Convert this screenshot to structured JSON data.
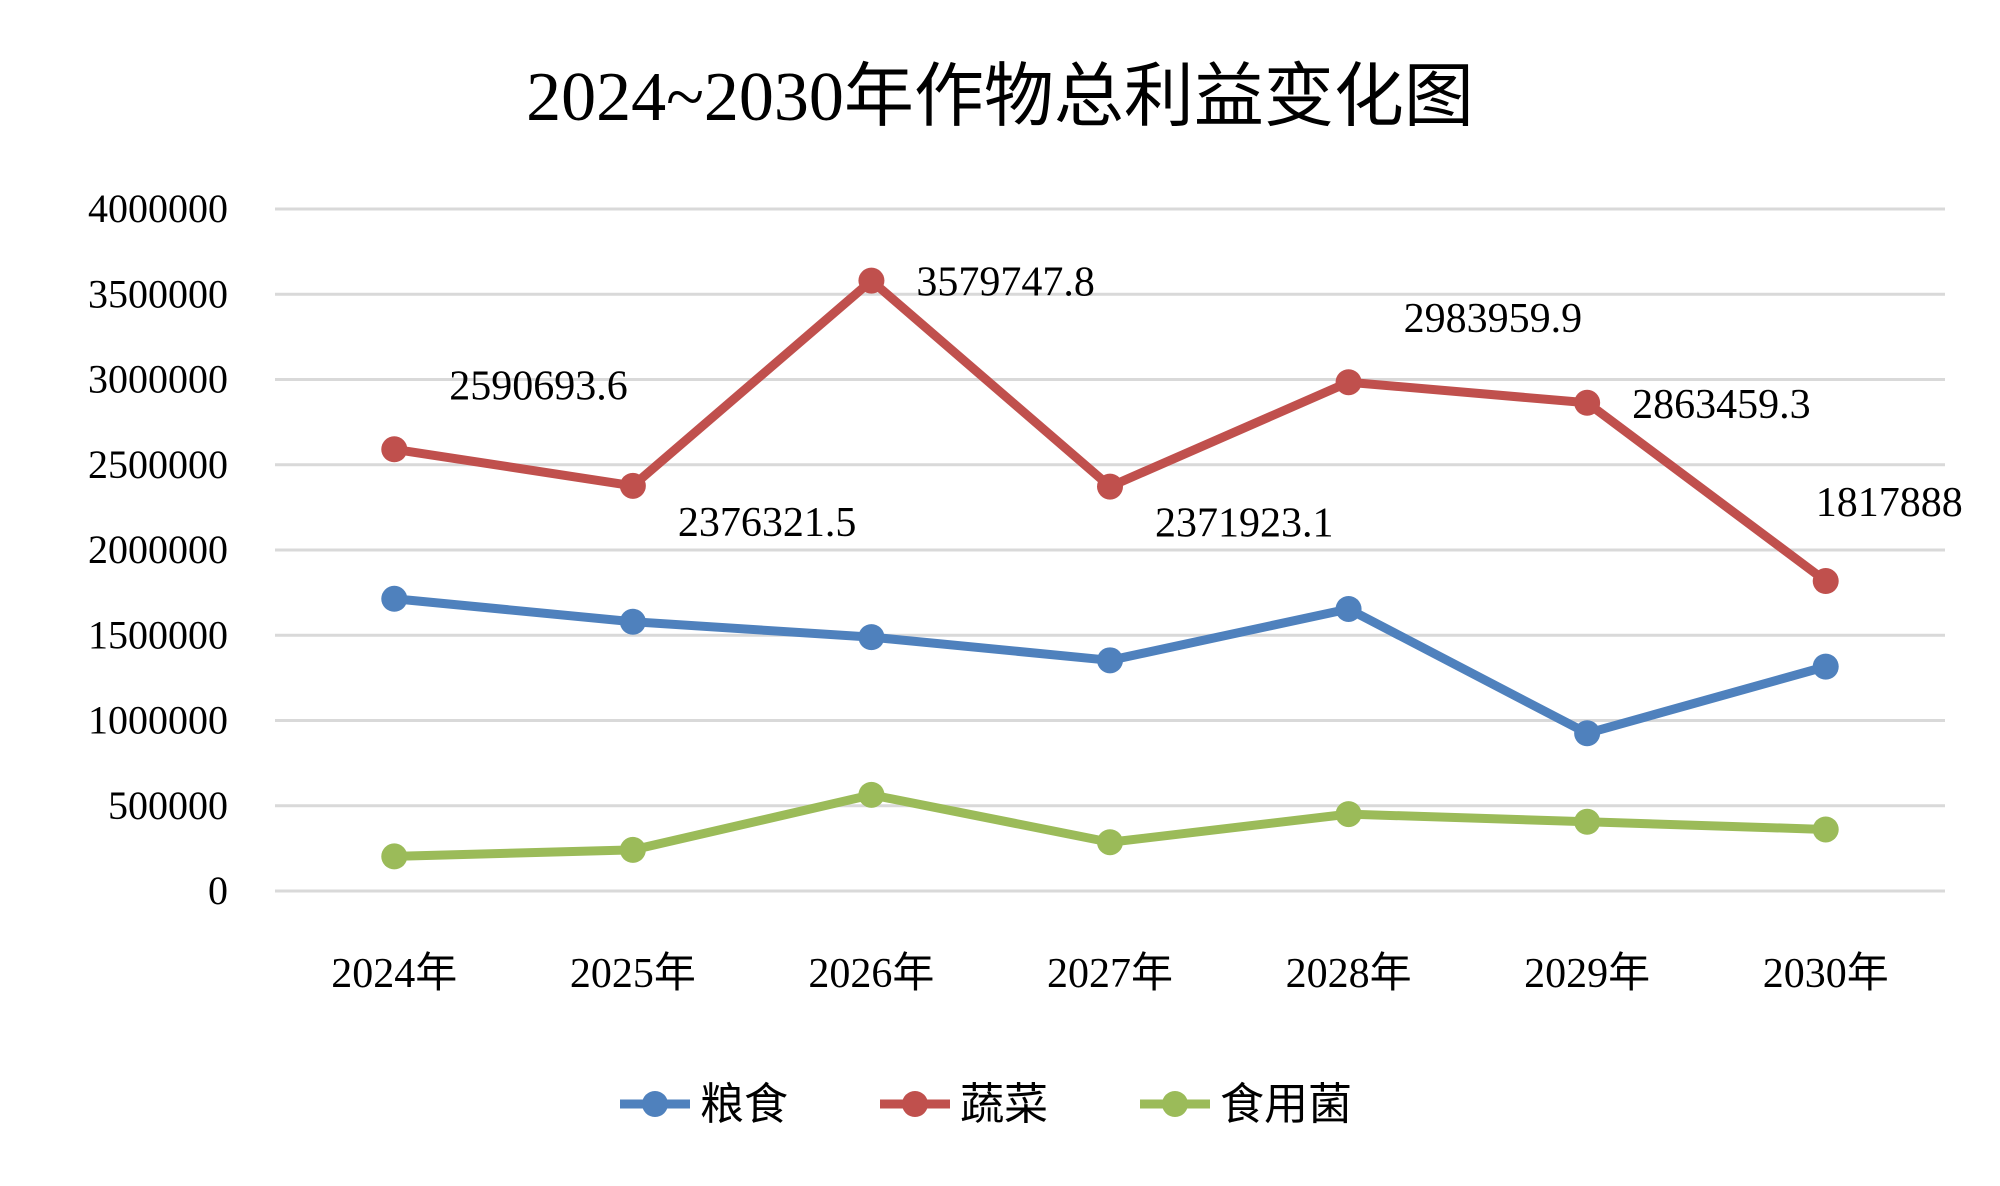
{
  "chart_data": {
    "type": "line",
    "title": "2024~2030年作物总利益变化图",
    "xlabel": "",
    "ylabel": "",
    "categories": [
      "2024年",
      "2025年",
      "2026年",
      "2027年",
      "2028年",
      "2029年",
      "2030年"
    ],
    "ylim": [
      0,
      4000000
    ],
    "yticks": [
      0,
      500000,
      1000000,
      1500000,
      2000000,
      2500000,
      3000000,
      3500000,
      4000000
    ],
    "ytick_labels": [
      "0",
      "500000",
      "1000000",
      "1500000",
      "2000000",
      "2500000",
      "3000000",
      "3500000",
      "4000000"
    ],
    "grid": true,
    "legend_position": "bottom",
    "series": [
      {
        "name": "粮食",
        "color": "#4f81bd",
        "values": [
          1714000,
          1579000,
          1489000,
          1353000,
          1654000,
          925000,
          1316000
        ]
      },
      {
        "name": "蔬菜",
        "color": "#c0504d",
        "values": [
          2590693.6,
          2376321.5,
          3579747.8,
          2371923.1,
          2983959.9,
          2863459.3,
          1817888
        ],
        "data_labels": [
          "2590693.6",
          "2376321.5",
          "3579747.8",
          "2371923.1",
          "2983959.9",
          "2863459.3",
          "1817888"
        ],
        "label_positions": [
          "above-right",
          "below-right",
          "right",
          "below-right",
          "above-right",
          "right",
          "above"
        ]
      },
      {
        "name": "食用菌",
        "color": "#9bbb59",
        "values": [
          203000,
          241000,
          564000,
          286000,
          451000,
          406000,
          361000
        ]
      }
    ]
  }
}
